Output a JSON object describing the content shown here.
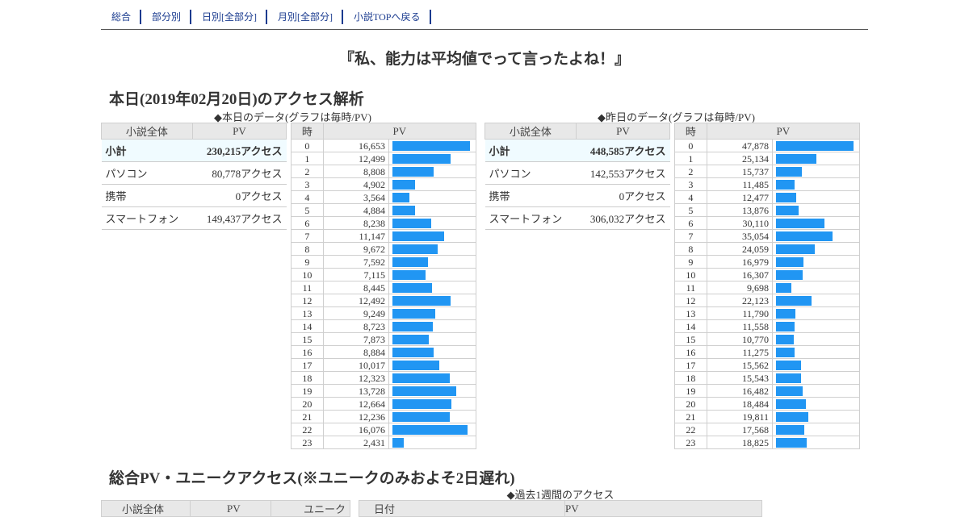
{
  "nav": [
    {
      "label": "総合"
    },
    {
      "label": "部分別"
    },
    {
      "label": "日別[全部分]"
    },
    {
      "label": "月別[全部分]"
    },
    {
      "label": "小説TOPへ戻る"
    }
  ],
  "novel_title": "『私、能力は平均値でって言ったよね！』",
  "today_heading": "本日(2019年02月20日)のアクセス解析",
  "today": {
    "caption": "◆本日のデータ(グラフは毎時/PV)",
    "summary_headers": [
      "小説全体",
      "PV"
    ],
    "summary": [
      {
        "label": "小計",
        "value": "230,215アクセス"
      },
      {
        "label": "パソコン",
        "value": "80,778アクセス"
      },
      {
        "label": "携帯",
        "value": "0アクセス"
      },
      {
        "label": "スマートフォン",
        "value": "149,437アクセス"
      }
    ],
    "hourly_headers": [
      "時",
      "PV"
    ],
    "hourly": [
      16653,
      12499,
      8808,
      4902,
      3564,
      4884,
      8238,
      11147,
      9672,
      7592,
      7115,
      8445,
      12492,
      9249,
      8723,
      7873,
      8884,
      10017,
      12323,
      13728,
      12664,
      12236,
      16076,
      2431
    ]
  },
  "yesterday": {
    "caption": "◆昨日のデータ(グラフは毎時/PV)",
    "summary_headers": [
      "小説全体",
      "PV"
    ],
    "summary": [
      {
        "label": "小計",
        "value": "448,585アクセス"
      },
      {
        "label": "パソコン",
        "value": "142,553アクセス"
      },
      {
        "label": "携帯",
        "value": "0アクセス"
      },
      {
        "label": "スマートフォン",
        "value": "306,032アクセス"
      }
    ],
    "hourly_headers": [
      "時",
      "PV"
    ],
    "hourly": [
      47878,
      25134,
      15737,
      11485,
      12477,
      13876,
      30110,
      35054,
      24059,
      16979,
      16307,
      9698,
      22123,
      11790,
      11558,
      10770,
      11275,
      15562,
      15543,
      16482,
      18484,
      19811,
      17568,
      18825
    ]
  },
  "total_heading": "総合PV・ユニークアクセス(※ユニークのみおよそ2日遅れ)",
  "week_caption": "◆過去1週間のアクセス",
  "total_headers": [
    "小説全体",
    "PV",
    "ユニーク"
  ],
  "week_headers": [
    "日付",
    "PV"
  ],
  "colors": {
    "bar": "#2196f3",
    "subtotal_bg": "#f0fbff",
    "header_bg": "#e8e8e8",
    "nav_link": "#1a3b8f"
  }
}
